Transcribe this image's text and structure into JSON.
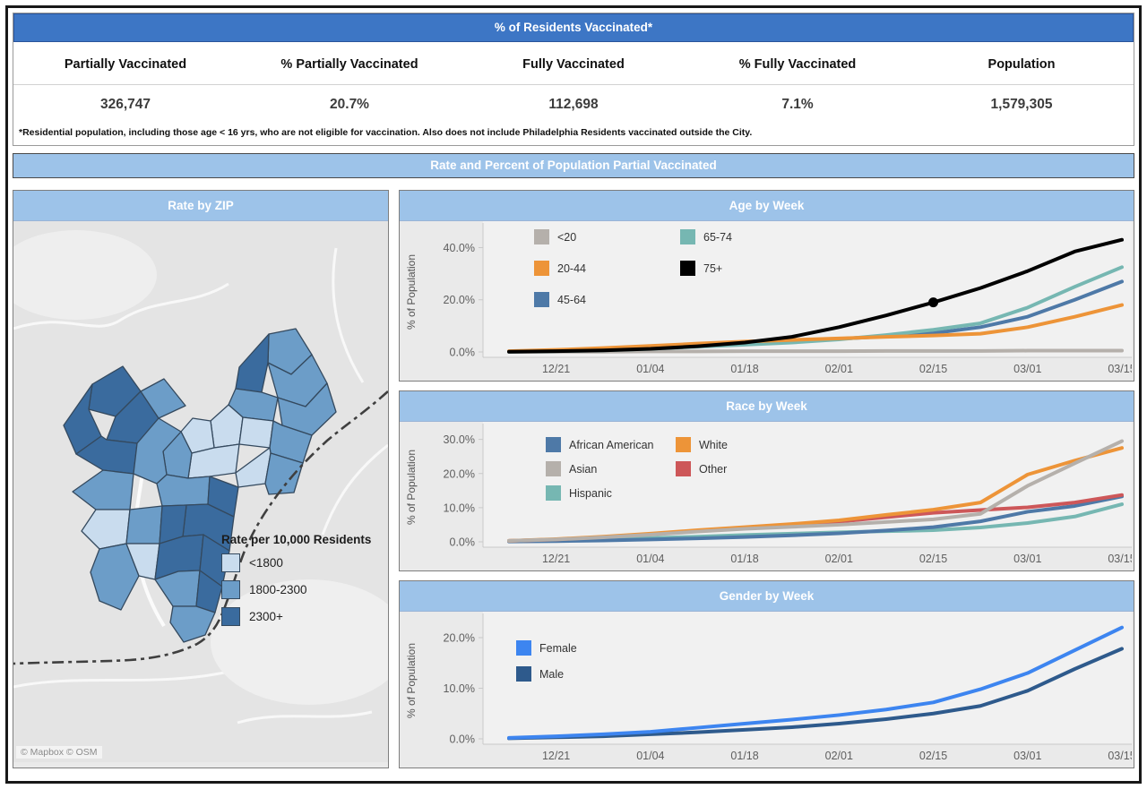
{
  "page": {
    "title_bar": "% of Residents Vaccinated*",
    "footnote": "*Residential population, including those age < 16 yrs, who are not eligible for vaccination.  Also does not include Philadelphia Residents vaccinated outside the City.",
    "section_title": "Rate and Percent of Population Partial Vaccinated"
  },
  "theme": {
    "header_blue": "#3D76C5",
    "subheader_blue": "#9DC3E9",
    "panel_bg": "#EAEAEA",
    "plot_bg": "#F1F1F1",
    "axis_line": "#C9C9C9",
    "tick_text": "#5F5F5F"
  },
  "stats": {
    "columns": [
      {
        "label": "Partially Vaccinated",
        "value": "326,747"
      },
      {
        "label": "% Partially Vaccinated",
        "value": "20.7%"
      },
      {
        "label": "Fully Vaccinated",
        "value": "112,698"
      },
      {
        "label": "% Fully Vaccinated",
        "value": "7.1%"
      },
      {
        "label": "Population",
        "value": "1,579,305"
      }
    ]
  },
  "map": {
    "title": "Rate by ZIP",
    "legend_title": "Rate per 10,000 Residents",
    "legend": [
      {
        "label": "<1800",
        "color": "#C9DCEE"
      },
      {
        "label": "1800-2300",
        "color": "#6C9DC8"
      },
      {
        "label": "2300+",
        "color": "#3A6B9E"
      }
    ],
    "attribution": "© Mapbox  © OSM"
  },
  "chart_data": [
    {
      "type": "line",
      "title": "Age by Week",
      "ylabel": "% of Population",
      "x": [
        "12/14",
        "12/21",
        "12/28",
        "01/04",
        "01/11",
        "01/18",
        "01/25",
        "02/01",
        "02/08",
        "02/15",
        "02/22",
        "03/01",
        "03/08",
        "03/15"
      ],
      "tick_indices": [
        1,
        3,
        5,
        7,
        9,
        11,
        13
      ],
      "x_tick_labels": [
        "12/21",
        "01/04",
        "01/18",
        "02/01",
        "02/15",
        "03/01",
        "03/15"
      ],
      "y_ticks": [
        {
          "v": 0,
          "label": "0.0%"
        },
        {
          "v": 20,
          "label": "20.0%"
        },
        {
          "v": 40,
          "label": "40.0%"
        }
      ],
      "ylim": [
        0,
        46
      ],
      "legend_columns": 2,
      "series": [
        {
          "name": "<20",
          "color": "#B5B0AB",
          "zorder": 0,
          "values": [
            0.0,
            0.1,
            0.1,
            0.2,
            0.2,
            0.3,
            0.3,
            0.3,
            0.4,
            0.4,
            0.4,
            0.5,
            0.5,
            0.5
          ]
        },
        {
          "name": "20-44",
          "color": "#ED9438",
          "zorder": 3,
          "values": [
            0.3,
            0.8,
            1.5,
            2.3,
            3.2,
            4.0,
            4.6,
            5.2,
            5.8,
            6.3,
            7.0,
            9.5,
            13.5,
            18.0
          ]
        },
        {
          "name": "45-64",
          "color": "#4E79A7",
          "zorder": 1,
          "values": [
            0.2,
            0.5,
            1.0,
            1.8,
            2.6,
            3.4,
            4.2,
            5.0,
            6.0,
            7.2,
            9.5,
            13.5,
            20.0,
            27.0
          ]
        },
        {
          "name": "65-74",
          "color": "#76B7B2",
          "zorder": 2,
          "values": [
            0.1,
            0.3,
            0.6,
            1.2,
            2.0,
            2.8,
            3.6,
            4.8,
            6.5,
            8.5,
            11.0,
            17.0,
            25.0,
            32.5
          ]
        },
        {
          "name": "75+",
          "color": "#000000",
          "zorder": 4,
          "marker_index": 9,
          "values": [
            0.1,
            0.3,
            0.6,
            1.2,
            2.2,
            3.6,
            5.8,
            9.5,
            14.0,
            19.0,
            24.5,
            31.0,
            38.5,
            43.0
          ]
        }
      ]
    },
    {
      "type": "line",
      "title": "Race by Week",
      "ylabel": "% of Population",
      "x": [
        "12/14",
        "12/21",
        "12/28",
        "01/04",
        "01/11",
        "01/18",
        "01/25",
        "02/01",
        "02/08",
        "02/15",
        "02/22",
        "03/01",
        "03/08",
        "03/15"
      ],
      "tick_indices": [
        1,
        3,
        5,
        7,
        9,
        11,
        13
      ],
      "x_tick_labels": [
        "12/21",
        "01/04",
        "01/18",
        "02/01",
        "02/15",
        "03/01",
        "03/15"
      ],
      "y_ticks": [
        {
          "v": 0,
          "label": "0.0%"
        },
        {
          "v": 10,
          "label": "10.0%"
        },
        {
          "v": 20,
          "label": "20.0%"
        },
        {
          "v": 30,
          "label": "30.0%"
        }
      ],
      "ylim": [
        0,
        32
      ],
      "legend_columns": 2,
      "series": [
        {
          "name": "African American",
          "color": "#4E79A7",
          "zorder": 1,
          "values": [
            0.1,
            0.2,
            0.4,
            0.7,
            1.0,
            1.4,
            1.9,
            2.5,
            3.3,
            4.3,
            6.0,
            8.8,
            10.5,
            13.3
          ]
        },
        {
          "name": "Asian",
          "color": "#B5B0AB",
          "zorder": 5,
          "values": [
            0.3,
            0.7,
            1.3,
            2.1,
            3.0,
            3.8,
            4.4,
            5.0,
            5.8,
            6.6,
            8.2,
            16.4,
            23.0,
            29.5
          ]
        },
        {
          "name": "Hispanic",
          "color": "#76B7B2",
          "zorder": 0,
          "values": [
            0.2,
            0.4,
            0.7,
            1.1,
            1.5,
            2.0,
            2.4,
            2.8,
            3.1,
            3.4,
            4.2,
            5.5,
            7.4,
            11.0
          ]
        },
        {
          "name": "White",
          "color": "#ED9438",
          "zorder": 4,
          "values": [
            0.3,
            0.8,
            1.5,
            2.4,
            3.4,
            4.3,
            5.2,
            6.3,
            7.9,
            9.4,
            11.5,
            19.7,
            23.8,
            27.5
          ]
        },
        {
          "name": "Other",
          "color": "#CD5759",
          "zorder": 2,
          "values": [
            0.3,
            0.7,
            1.4,
            2.2,
            3.2,
            4.1,
            4.9,
            5.9,
            7.2,
            8.5,
            9.3,
            10.1,
            11.5,
            13.7
          ]
        }
      ]
    },
    {
      "type": "line",
      "title": "Gender by Week",
      "ylabel": "% of Population",
      "x": [
        "12/14",
        "12/21",
        "12/28",
        "01/04",
        "01/11",
        "01/18",
        "01/25",
        "02/01",
        "02/08",
        "02/15",
        "02/22",
        "03/01",
        "03/08",
        "03/15"
      ],
      "tick_indices": [
        1,
        3,
        5,
        7,
        9,
        11,
        13
      ],
      "x_tick_labels": [
        "12/21",
        "01/04",
        "01/18",
        "02/01",
        "02/15",
        "03/01",
        "03/15"
      ],
      "y_ticks": [
        {
          "v": 0,
          "label": "0.0%"
        },
        {
          "v": 10,
          "label": "10.0%"
        },
        {
          "v": 20,
          "label": "20.0%"
        }
      ],
      "ylim": [
        0,
        23
      ],
      "legend_columns": 1,
      "series": [
        {
          "name": "Female",
          "color": "#3D85F0",
          "zorder": 1,
          "values": [
            0.2,
            0.5,
            0.9,
            1.4,
            2.2,
            3.0,
            3.8,
            4.7,
            5.8,
            7.2,
            9.8,
            13.0,
            17.5,
            22.0
          ]
        },
        {
          "name": "Male",
          "color": "#2E5A8C",
          "zorder": 0,
          "values": [
            0.1,
            0.3,
            0.5,
            0.9,
            1.3,
            1.8,
            2.3,
            3.0,
            3.9,
            5.0,
            6.5,
            9.5,
            13.8,
            17.8
          ]
        }
      ]
    }
  ]
}
